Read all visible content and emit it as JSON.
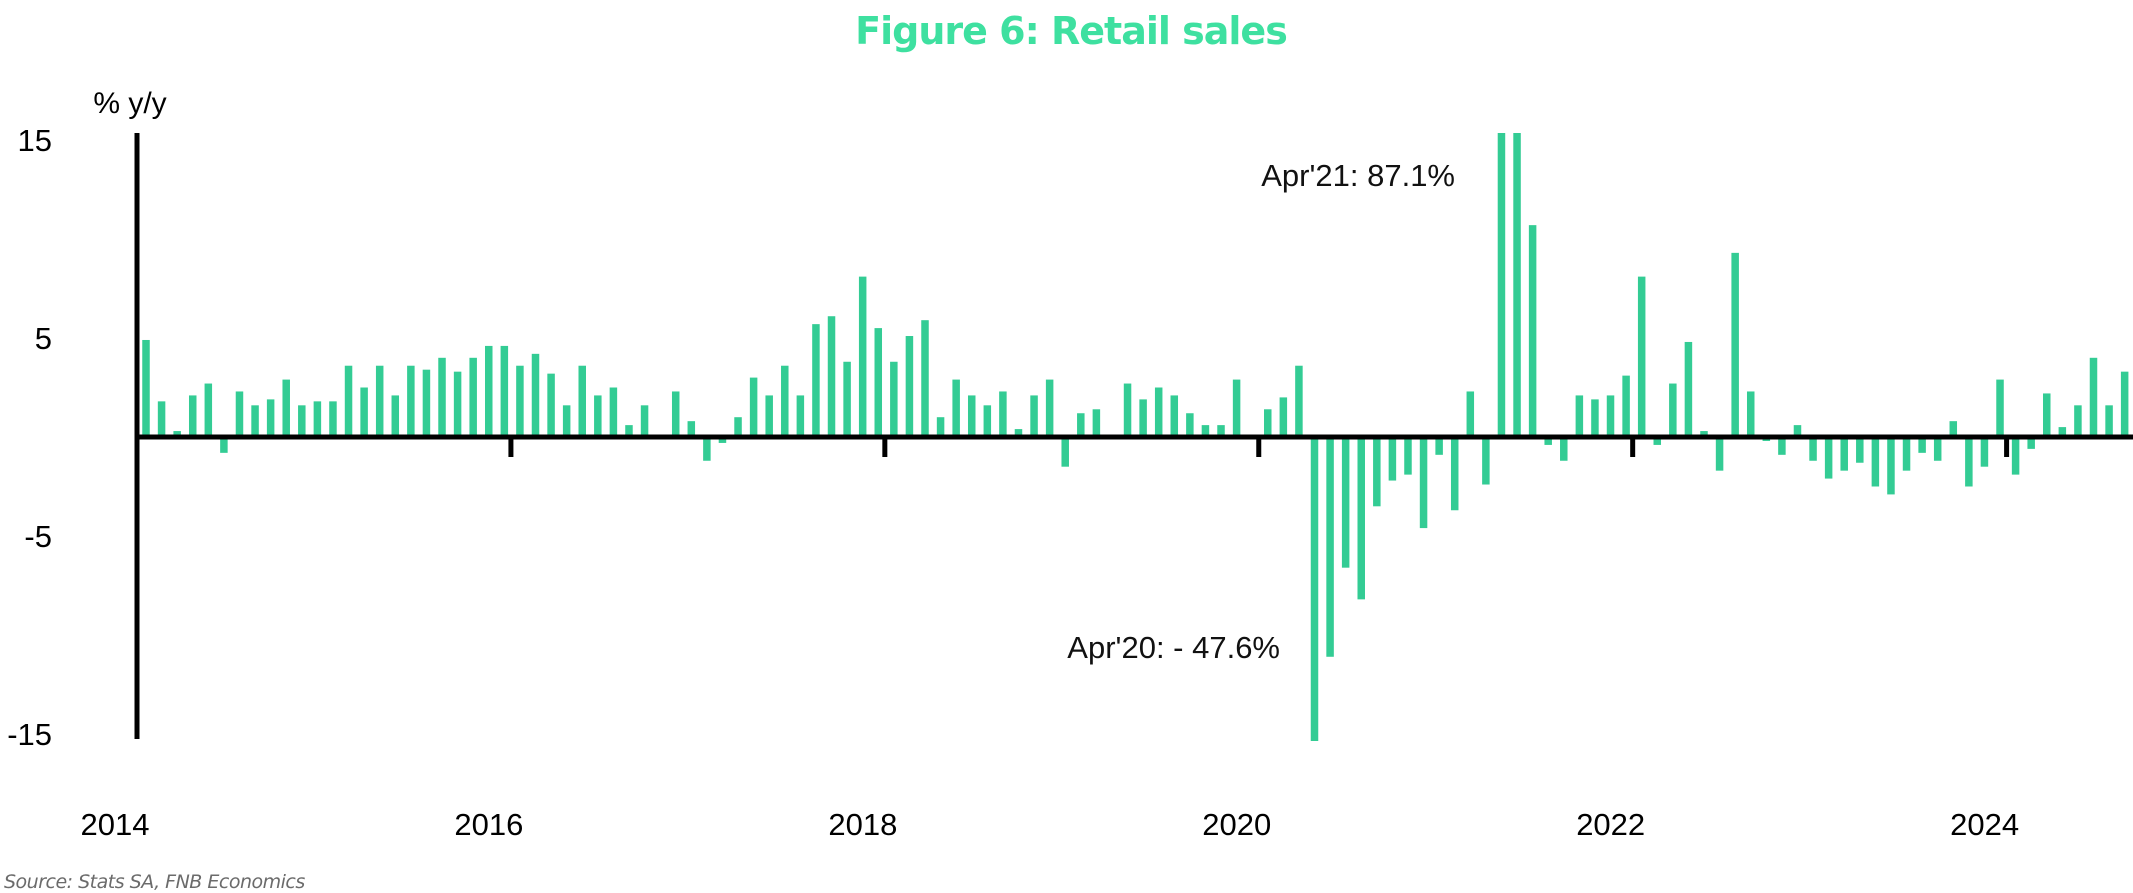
{
  "chart_data": {
    "type": "bar",
    "title": "Figure 6: Retail sales",
    "ylabel": "% y/y",
    "xlabel": "",
    "ylim": [
      -15,
      15
    ],
    "yticks": [
      15,
      5,
      -5,
      -15
    ],
    "xtick_labels": [
      "2014",
      "2016",
      "2018",
      "2020",
      "2022",
      "2024"
    ],
    "grid": false,
    "legend": "none",
    "bar_color": "#33cc94",
    "title_color": "#3ee0a0",
    "start_month": "2014-01",
    "frequency": "monthly",
    "annotations": [
      {
        "text": "Apr'21: 87.1%",
        "month": "2021-04",
        "value": 87.1
      },
      {
        "text": "Apr'20:  - 47.6%",
        "month": "2020-04",
        "value": -47.6
      }
    ],
    "series": [
      {
        "name": "Retail sales % y/y",
        "values": [
          4.9,
          1.8,
          0.3,
          2.1,
          2.7,
          -0.8,
          2.3,
          1.6,
          1.9,
          2.9,
          1.6,
          1.8,
          1.8,
          3.6,
          2.5,
          3.6,
          2.1,
          3.6,
          3.4,
          4.0,
          3.3,
          4.0,
          4.6,
          4.6,
          3.6,
          4.2,
          3.2,
          1.6,
          3.6,
          2.1,
          2.5,
          0.6,
          1.6,
          0.1,
          2.3,
          0.8,
          -1.2,
          -0.3,
          1.0,
          3.0,
          2.1,
          3.6,
          2.1,
          5.7,
          6.1,
          3.8,
          8.1,
          5.5,
          3.8,
          5.1,
          5.9,
          1.0,
          2.9,
          2.1,
          1.6,
          2.3,
          0.4,
          2.1,
          2.9,
          -1.5,
          1.2,
          1.4,
          0.1,
          2.7,
          1.9,
          2.5,
          2.1,
          1.2,
          0.6,
          0.6,
          2.9,
          -0.1,
          1.4,
          2.0,
          3.6,
          -47.6,
          -11.1,
          -6.6,
          -8.2,
          -3.5,
          -2.2,
          -1.9,
          -4.6,
          -0.9,
          -3.7,
          2.3,
          -2.4,
          87.1,
          27.5,
          10.7,
          -0.4,
          -1.2,
          2.1,
          1.9,
          2.1,
          3.1,
          8.1,
          -0.4,
          2.7,
          4.8,
          0.3,
          -1.7,
          9.3,
          2.3,
          -0.2,
          -0.9,
          0.6,
          -1.2,
          -2.1,
          -1.7,
          -1.3,
          -2.5,
          -2.9,
          -1.7,
          -0.8,
          -1.2,
          0.8,
          -2.5,
          -1.5,
          2.9,
          -1.9,
          -0.6,
          2.2,
          0.5,
          1.6,
          4.0,
          1.6,
          3.3
        ]
      }
    ],
    "source": "Source: Stats SA, FNB Economics"
  }
}
